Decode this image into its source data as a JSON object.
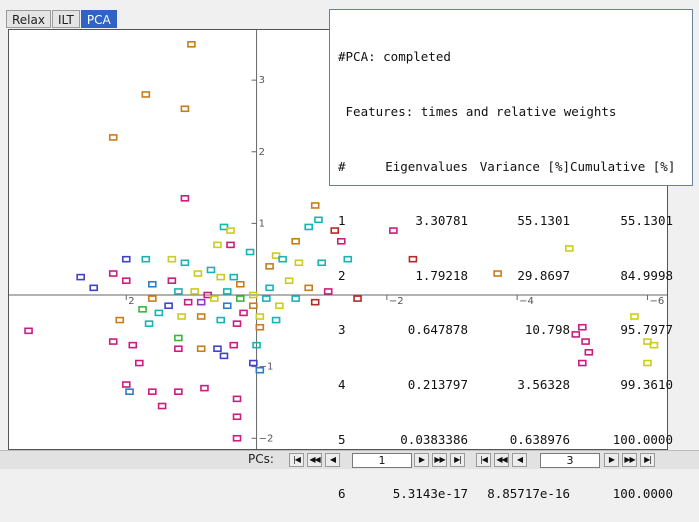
{
  "tabs": [
    "Relax",
    "ILT",
    "PCA"
  ],
  "active_tab": "PCA",
  "info": {
    "line1": "#PCA: completed",
    "line2": " Features: times and relative weights",
    "header": [
      "#",
      "Eigenvalues",
      "Variance [%]",
      "Cumulative [%]"
    ],
    "rows": [
      [
        "1",
        "3.30781",
        "55.1301",
        "55.1301"
      ],
      [
        "2",
        "1.79218",
        "29.8697",
        "84.9998"
      ],
      [
        "3",
        "0.647878",
        "10.798",
        "95.7977"
      ],
      [
        "4",
        "0.213797",
        "3.56328",
        "99.3610"
      ],
      [
        "5",
        "0.0383386",
        "0.638976",
        "100.0000"
      ],
      [
        "6",
        "5.3143e-17",
        "8.85717e-16",
        "100.0000"
      ]
    ]
  },
  "pcs": {
    "label": "PCs:",
    "first_pc": "1",
    "second_pc": "3",
    "nav_glyphs": {
      "first": "|◀",
      "fast_back": "◀◀",
      "back": "◀",
      "forward": "▶",
      "fast_forward": "▶▶",
      "last": "▶|"
    }
  },
  "chart_data": {
    "type": "scatter",
    "title": "",
    "xlabel": "",
    "ylabel": "",
    "x_axis_reversed": true,
    "xlim": [
      3.8,
      -6.3
    ],
    "ylim": [
      -2.15,
      3.7
    ],
    "x_ticks": [
      "2",
      "-2",
      "-4",
      "-6"
    ],
    "y_ticks": [
      "3",
      "2",
      "1",
      "-1",
      "-2"
    ],
    "marker": "hollow square",
    "colors": [
      "#cccc1a",
      "#17b4b4",
      "#c81e7e",
      "#4242c8",
      "#c87d17",
      "#b42a2a",
      "#2a7ec8",
      "#8a3cc8",
      "#3cb43c"
    ],
    "points": [
      {
        "x": 1.0,
        "y": 3.5,
        "c": 4
      },
      {
        "x": 1.7,
        "y": 2.8,
        "c": 4
      },
      {
        "x": 1.1,
        "y": 2.6,
        "c": 4
      },
      {
        "x": 2.2,
        "y": 2.2,
        "c": 4
      },
      {
        "x": 1.1,
        "y": 1.35,
        "c": 2
      },
      {
        "x": 0.5,
        "y": 0.95,
        "c": 1
      },
      {
        "x": 0.4,
        "y": 0.9,
        "c": 0
      },
      {
        "x": 0.4,
        "y": 0.7,
        "c": 2
      },
      {
        "x": 0.6,
        "y": 0.7,
        "c": 0
      },
      {
        "x": 0.1,
        "y": 0.6,
        "c": 1
      },
      {
        "x": -0.3,
        "y": 0.55,
        "c": 0
      },
      {
        "x": -0.6,
        "y": 0.75,
        "c": 4
      },
      {
        "x": -0.8,
        "y": 0.95,
        "c": 1
      },
      {
        "x": -0.9,
        "y": 1.25,
        "c": 4
      },
      {
        "x": -0.95,
        "y": 1.05,
        "c": 1
      },
      {
        "x": -1.2,
        "y": 0.9,
        "c": 5
      },
      {
        "x": -1.3,
        "y": 0.75,
        "c": 2
      },
      {
        "x": -2.1,
        "y": 0.9,
        "c": 2
      },
      {
        "x": -2.4,
        "y": 0.5,
        "c": 5
      },
      {
        "x": -4.8,
        "y": 0.65,
        "c": 0
      },
      {
        "x": -3.7,
        "y": 0.3,
        "c": 4
      },
      {
        "x": 2.2,
        "y": 0.3,
        "c": 2
      },
      {
        "x": 2.7,
        "y": 0.25,
        "c": 3
      },
      {
        "x": 2.5,
        "y": 0.1,
        "c": 3
      },
      {
        "x": 2.0,
        "y": 0.5,
        "c": 3
      },
      {
        "x": 1.7,
        "y": 0.5,
        "c": 1
      },
      {
        "x": 1.3,
        "y": 0.5,
        "c": 0
      },
      {
        "x": 1.1,
        "y": 0.45,
        "c": 1
      },
      {
        "x": 0.9,
        "y": 0.3,
        "c": 0
      },
      {
        "x": 0.7,
        "y": 0.35,
        "c": 1
      },
      {
        "x": 0.55,
        "y": 0.25,
        "c": 0
      },
      {
        "x": 2.0,
        "y": 0.2,
        "c": 2
      },
      {
        "x": 1.6,
        "y": 0.15,
        "c": 6
      },
      {
        "x": 1.3,
        "y": 0.2,
        "c": 2
      },
      {
        "x": 1.2,
        "y": 0.05,
        "c": 1
      },
      {
        "x": 0.95,
        "y": 0.05,
        "c": 0
      },
      {
        "x": 0.75,
        "y": 0.0,
        "c": 2
      },
      {
        "x": 0.45,
        "y": 0.05,
        "c": 1
      },
      {
        "x": 0.25,
        "y": 0.15,
        "c": 4
      },
      {
        "x": 0.05,
        "y": 0.0,
        "c": 0
      },
      {
        "x": -0.2,
        "y": 0.1,
        "c": 1
      },
      {
        "x": -0.5,
        "y": 0.2,
        "c": 0
      },
      {
        "x": -0.8,
        "y": 0.1,
        "c": 4
      },
      {
        "x": -1.1,
        "y": 0.05,
        "c": 2
      },
      {
        "x": -0.9,
        "y": -0.1,
        "c": 5
      },
      {
        "x": -1.55,
        "y": -0.05,
        "c": 5
      },
      {
        "x": -1.0,
        "y": 0.45,
        "c": 1
      },
      {
        "x": -1.4,
        "y": 0.5,
        "c": 1
      },
      {
        "x": -0.65,
        "y": 0.45,
        "c": 0
      },
      {
        "x": -0.2,
        "y": 0.4,
        "c": 4
      },
      {
        "x": -0.4,
        "y": 0.5,
        "c": 1
      },
      {
        "x": 0.35,
        "y": 0.25,
        "c": 1
      },
      {
        "x": 1.6,
        "y": -0.05,
        "c": 4
      },
      {
        "x": 1.35,
        "y": -0.15,
        "c": 3
      },
      {
        "x": 1.05,
        "y": -0.1,
        "c": 2
      },
      {
        "x": 0.85,
        "y": -0.1,
        "c": 7
      },
      {
        "x": 0.65,
        "y": -0.05,
        "c": 0
      },
      {
        "x": 0.45,
        "y": -0.15,
        "c": 6
      },
      {
        "x": 0.25,
        "y": -0.05,
        "c": 8
      },
      {
        "x": 0.05,
        "y": -0.15,
        "c": 4
      },
      {
        "x": -0.15,
        "y": -0.05,
        "c": 1
      },
      {
        "x": -0.35,
        "y": -0.15,
        "c": 0
      },
      {
        "x": -0.6,
        "y": -0.05,
        "c": 1
      },
      {
        "x": 1.75,
        "y": -0.2,
        "c": 8
      },
      {
        "x": 1.5,
        "y": -0.25,
        "c": 1
      },
      {
        "x": 1.15,
        "y": -0.3,
        "c": 0
      },
      {
        "x": 0.85,
        "y": -0.3,
        "c": 4
      },
      {
        "x": 0.55,
        "y": -0.35,
        "c": 1
      },
      {
        "x": 0.2,
        "y": -0.25,
        "c": 2
      },
      {
        "x": -0.05,
        "y": -0.3,
        "c": 0
      },
      {
        "x": -0.3,
        "y": -0.35,
        "c": 1
      },
      {
        "x": 2.1,
        "y": -0.35,
        "c": 4
      },
      {
        "x": 1.65,
        "y": -0.4,
        "c": 1
      },
      {
        "x": 0.3,
        "y": -0.4,
        "c": 2
      },
      {
        "x": -0.05,
        "y": -0.45,
        "c": 4
      },
      {
        "x": 1.2,
        "y": -0.6,
        "c": 8
      },
      {
        "x": 2.2,
        "y": -0.65,
        "c": 2
      },
      {
        "x": 1.9,
        "y": -0.7,
        "c": 2
      },
      {
        "x": 1.2,
        "y": -0.75,
        "c": 2
      },
      {
        "x": 0.85,
        "y": -0.75,
        "c": 4
      },
      {
        "x": 0.6,
        "y": -0.75,
        "c": 3
      },
      {
        "x": 0.5,
        "y": -0.85,
        "c": 3
      },
      {
        "x": 0.35,
        "y": -0.7,
        "c": 2
      },
      {
        "x": 0.0,
        "y": -0.7,
        "c": 1
      },
      {
        "x": 1.8,
        "y": -0.95,
        "c": 2
      },
      {
        "x": 0.05,
        "y": -0.95,
        "c": 3
      },
      {
        "x": -0.05,
        "y": -1.05,
        "c": 6
      },
      {
        "x": 2.0,
        "y": -1.25,
        "c": 2
      },
      {
        "x": 1.95,
        "y": -1.35,
        "c": 6
      },
      {
        "x": 1.6,
        "y": -1.35,
        "c": 2
      },
      {
        "x": 1.2,
        "y": -1.35,
        "c": 2
      },
      {
        "x": 0.8,
        "y": -1.3,
        "c": 2
      },
      {
        "x": 0.3,
        "y": -1.45,
        "c": 2
      },
      {
        "x": 1.45,
        "y": -1.55,
        "c": 2
      },
      {
        "x": 0.3,
        "y": -1.7,
        "c": 2
      },
      {
        "x": 0.3,
        "y": -2.0,
        "c": 2
      },
      {
        "x": 3.5,
        "y": -0.5,
        "c": 2
      },
      {
        "x": -5.0,
        "y": -0.45,
        "c": 2
      },
      {
        "x": -4.9,
        "y": -0.55,
        "c": 2
      },
      {
        "x": -5.05,
        "y": -0.65,
        "c": 2
      },
      {
        "x": -5.0,
        "y": -0.95,
        "c": 2
      },
      {
        "x": -5.1,
        "y": -0.8,
        "c": 2
      },
      {
        "x": -5.8,
        "y": -0.3,
        "c": 0
      },
      {
        "x": -6.0,
        "y": -0.65,
        "c": 0
      },
      {
        "x": -6.1,
        "y": -0.7,
        "c": 0
      },
      {
        "x": -6.0,
        "y": -0.95,
        "c": 0
      }
    ]
  }
}
